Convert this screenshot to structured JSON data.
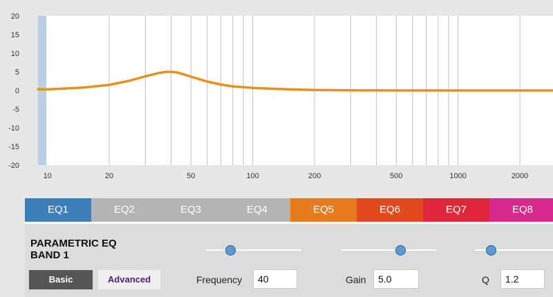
{
  "chart_data": {
    "type": "line",
    "title": "",
    "xlabel": "",
    "ylabel": "",
    "x_scale": "log",
    "xlim": [
      9,
      2900
    ],
    "ylim": [
      -20,
      20
    ],
    "y_ticks": [
      "20",
      "15",
      "10",
      "5",
      "0",
      "-5",
      "-10",
      "-15",
      "-20"
    ],
    "x_ticks": [
      {
        "v": 10,
        "label": "10"
      },
      {
        "v": 20,
        "label": "20"
      },
      {
        "v": 50,
        "label": "50"
      },
      {
        "v": 100,
        "label": "100"
      },
      {
        "v": 200,
        "label": "200"
      },
      {
        "v": 500,
        "label": "500"
      },
      {
        "v": 1000,
        "label": "1000"
      },
      {
        "v": 2000,
        "label": "2000"
      }
    ],
    "grid_lines_x": [
      20,
      30,
      40,
      50,
      60,
      70,
      80,
      90,
      100,
      200,
      300,
      400,
      500,
      600,
      700,
      800,
      900,
      1000,
      2000
    ],
    "series": [
      {
        "color": "#e8901c",
        "x": [
          9,
          10,
          12,
          15,
          20,
          25,
          30,
          35,
          38,
          40,
          42,
          45,
          50,
          60,
          70,
          80,
          100,
          120,
          150,
          200,
          300,
          500,
          1000,
          2000,
          2900
        ],
        "y": [
          0.3,
          0.3,
          0.5,
          0.8,
          1.5,
          2.6,
          3.8,
          4.7,
          5.0,
          5.0,
          4.9,
          4.5,
          3.7,
          2.4,
          1.6,
          1.1,
          0.7,
          0.5,
          0.3,
          0.15,
          0.05,
          0,
          0,
          0,
          0
        ]
      }
    ],
    "grid": true
  },
  "colors": {
    "curve": "#e8901c",
    "plot_bg": "#ffffff",
    "grid": "#c0c0c0",
    "page_bg": "#e7e7e7",
    "tick_text": "#333333"
  },
  "tabs": [
    {
      "label": "EQ1",
      "color": "#3c7fba"
    },
    {
      "label": "EQ2",
      "color": "#b4b4b4"
    },
    {
      "label": "EQ3",
      "color": "#b4b4b4"
    },
    {
      "label": "EQ4",
      "color": "#b4b4b4"
    },
    {
      "label": "EQ5",
      "color": "#e77c1e"
    },
    {
      "label": "EQ6",
      "color": "#e24a1e"
    },
    {
      "label": "EQ7",
      "color": "#e0263a"
    },
    {
      "label": "EQ8",
      "color": "#d7288d"
    }
  ],
  "panel": {
    "title_line1": "PARAMETRIC EQ",
    "title_line2": "BAND 1",
    "basic_label": "Basic",
    "advanced_label": "Advanced",
    "frequency": {
      "label": "Frequency",
      "value": "40",
      "slider_level": 0.25
    },
    "gain": {
      "label": "Gain",
      "value": "5.0",
      "slider_level": 0.62
    },
    "q": {
      "label": "Q",
      "value": "1.2",
      "slider_level": 0.2
    }
  }
}
